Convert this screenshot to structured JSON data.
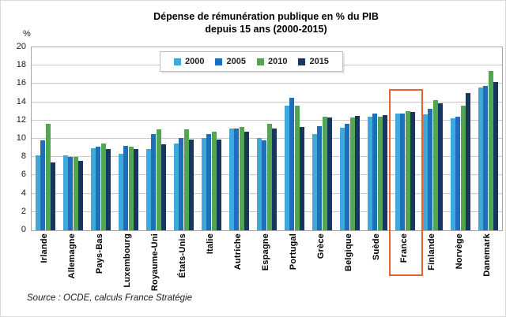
{
  "source": "Source : OCDE, calculs France Stratégie",
  "chart_data": {
    "type": "bar",
    "title": "Dépense de rémunération publique en % du PIB",
    "subtitle": "depuis 15 ans (2000-2015)",
    "y_axis_label": "%",
    "ylim": [
      0,
      20
    ],
    "y_tick_step": 2,
    "grid": true,
    "legend_position": "top-center",
    "categories": [
      "Irlande",
      "Allemagne",
      "Pays-Bas",
      "Luxembourg",
      "Royaume-Uni",
      "États-Unis",
      "Italie",
      "Autriche",
      "Espagne",
      "Portugal",
      "Grèce",
      "Belgique",
      "Suède",
      "France",
      "Finlande",
      "Norvège",
      "Danemark"
    ],
    "series": [
      {
        "name": "2000",
        "color": "#3FA9DC",
        "values": [
          8.2,
          8.2,
          9.0,
          8.4,
          8.9,
          9.5,
          10.1,
          11.1,
          10.1,
          13.6,
          10.5,
          11.2,
          12.4,
          12.8,
          12.7,
          12.2,
          15.6
        ]
      },
      {
        "name": "2005",
        "color": "#1E6FB9",
        "values": [
          9.8,
          8.0,
          9.1,
          9.2,
          10.5,
          10.1,
          10.5,
          11.1,
          9.8,
          14.5,
          11.4,
          11.6,
          12.8,
          12.8,
          13.3,
          12.4,
          15.8
        ]
      },
      {
        "name": "2010",
        "color": "#52A652",
        "values": [
          11.6,
          8.0,
          9.5,
          9.1,
          11.0,
          11.0,
          10.8,
          11.3,
          11.6,
          13.6,
          12.4,
          12.3,
          12.4,
          13.0,
          14.2,
          13.6,
          17.4
        ]
      },
      {
        "name": "2015",
        "color": "#17375E",
        "values": [
          7.4,
          7.6,
          8.9,
          8.9,
          9.4,
          9.9,
          9.9,
          10.8,
          11.1,
          11.3,
          12.3,
          12.5,
          12.6,
          12.9,
          13.9,
          15.0,
          16.2
        ]
      }
    ],
    "highlight": {
      "category": "France",
      "color": "#E8622D"
    }
  }
}
